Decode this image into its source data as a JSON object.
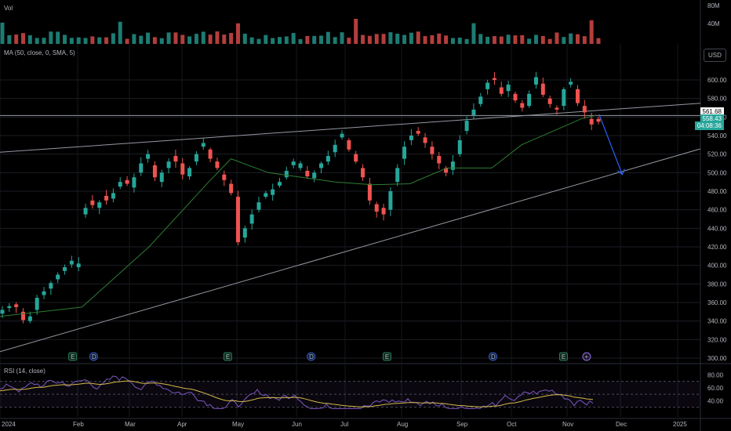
{
  "indicators": {
    "vol_label": "Vol",
    "ma_label": "MA (50, close, 0, SMA, 5)",
    "rsi_label": "RSI (14, close)"
  },
  "currency_button": "USD",
  "price_badges": {
    "line_price": "561.68",
    "last_price": "558.43",
    "countdown": "04:08:36"
  },
  "event_markers": [
    {
      "label": "E",
      "month": "2024-01-30"
    },
    {
      "label": "D",
      "month": "2024-02-10"
    },
    {
      "label": "E",
      "month": "2024-04-26"
    },
    {
      "label": "D",
      "month": "2024-06-10"
    },
    {
      "label": "E",
      "month": "2024-07-24"
    },
    {
      "label": "D",
      "month": "2024-09-20"
    },
    {
      "label": "E",
      "month": "2024-10-30"
    },
    {
      "label": "+",
      "month": "2024-11-12"
    }
  ],
  "colors": {
    "up": "#26a69a",
    "down": "#ef5350",
    "ma": "#2e7d32",
    "rsi": "#7e57c2",
    "rsi_ma": "#d4b94a",
    "arrow": "#2962ff",
    "badge": "#26a69a"
  },
  "chart_data": {
    "type": "candlestick",
    "x_axis": {
      "ticks": [
        "2024",
        "Feb",
        "Mar",
        "Apr",
        "May",
        "Jun",
        "Jul",
        "Aug",
        "Sep",
        "Oct",
        "Nov",
        "Dec",
        "2025"
      ]
    },
    "price_axis": {
      "ticks": [
        300,
        320,
        340,
        360,
        380,
        400,
        420,
        440,
        460,
        480,
        500,
        520,
        540,
        560,
        580,
        600
      ],
      "range": [
        292,
        619
      ]
    },
    "volume_axis": {
      "ticks": [
        "40M",
        "80M"
      ]
    },
    "rsi_axis": {
      "ticks": [
        40,
        60,
        80
      ],
      "band": [
        30,
        70
      ]
    },
    "daily_closes": [
      [
        348,
        352
      ],
      [
        354,
        356
      ],
      [
        358,
        355
      ],
      [
        350,
        341
      ],
      [
        340,
        345
      ],
      [
        352,
        365
      ],
      [
        368,
        372
      ],
      [
        375,
        381
      ],
      [
        385,
        390
      ],
      [
        394,
        398
      ],
      [
        401,
        405
      ],
      [
        398,
        402
      ],
      [
        455,
        462
      ],
      [
        470,
        465
      ],
      [
        462,
        468
      ],
      [
        475,
        470
      ],
      [
        472,
        478
      ],
      [
        485,
        490
      ],
      [
        492,
        488
      ],
      [
        484,
        495
      ],
      [
        500,
        510
      ],
      [
        515,
        520
      ],
      [
        508,
        495
      ],
      [
        490,
        500
      ],
      [
        505,
        512
      ],
      [
        518,
        512
      ],
      [
        510,
        498
      ],
      [
        496,
        505
      ],
      [
        512,
        520
      ],
      [
        528,
        532
      ],
      [
        525,
        515
      ],
      [
        512,
        505
      ],
      [
        498,
        492
      ],
      [
        488,
        478
      ],
      [
        474,
        425
      ],
      [
        430,
        440
      ],
      [
        445,
        455
      ],
      [
        460,
        468
      ],
      [
        474,
        478
      ],
      [
        476,
        482
      ],
      [
        486,
        490
      ],
      [
        495,
        502
      ],
      [
        508,
        512
      ],
      [
        505,
        510
      ],
      [
        502,
        496
      ],
      [
        494,
        500
      ],
      [
        505,
        510
      ],
      [
        512,
        518
      ],
      [
        522,
        530
      ],
      [
        538,
        542
      ],
      [
        535,
        525
      ],
      [
        520,
        512
      ],
      [
        505,
        495
      ],
      [
        488,
        470
      ],
      [
        466,
        458
      ],
      [
        462,
        455
      ],
      [
        460,
        480
      ],
      [
        490,
        505
      ],
      [
        515,
        528
      ],
      [
        535,
        540
      ],
      [
        545,
        542
      ],
      [
        538,
        532
      ],
      [
        528,
        520
      ],
      [
        518,
        510
      ],
      [
        505,
        500
      ],
      [
        503,
        512
      ],
      [
        520,
        535
      ],
      [
        545,
        556
      ],
      [
        562,
        568
      ],
      [
        574,
        582
      ],
      [
        590,
        597
      ],
      [
        602,
        600
      ],
      [
        592,
        585
      ],
      [
        588,
        595
      ],
      [
        585,
        578
      ],
      [
        575,
        570
      ],
      [
        572,
        585
      ],
      [
        595,
        603
      ],
      [
        596,
        584
      ],
      [
        580,
        574
      ],
      [
        570,
        568
      ],
      [
        572,
        590
      ],
      [
        595,
        598
      ],
      [
        590,
        575
      ],
      [
        572,
        565
      ],
      [
        558,
        552
      ],
      [
        558
      ]
    ],
    "overlays": {
      "ma_50_sma": [
        [
          0,
          345
        ],
        [
          0.11,
          355
        ],
        [
          0.2,
          420
        ],
        [
          0.28,
          490
        ],
        [
          0.31,
          515
        ],
        [
          0.36,
          500
        ],
        [
          0.45,
          490
        ],
        [
          0.5,
          487
        ],
        [
          0.55,
          488
        ],
        [
          0.6,
          505
        ],
        [
          0.66,
          505
        ],
        [
          0.7,
          530
        ],
        [
          0.78,
          558
        ],
        [
          0.8,
          562
        ]
      ],
      "horizontal_level": 561.68,
      "trendlines": [
        {
          "name": "upper",
          "from": [
            "2024-01-01",
            522
          ],
          "to": [
            "2024-12-31",
            573
          ]
        },
        {
          "name": "lower",
          "from": [
            "2024-01-01",
            307
          ],
          "to": [
            "2024-12-31",
            518
          ]
        }
      ],
      "projection_arrow": {
        "from": [
          "2024-11-19",
          563
        ],
        "to": [
          "2024-12-02",
          498
        ]
      }
    }
  }
}
